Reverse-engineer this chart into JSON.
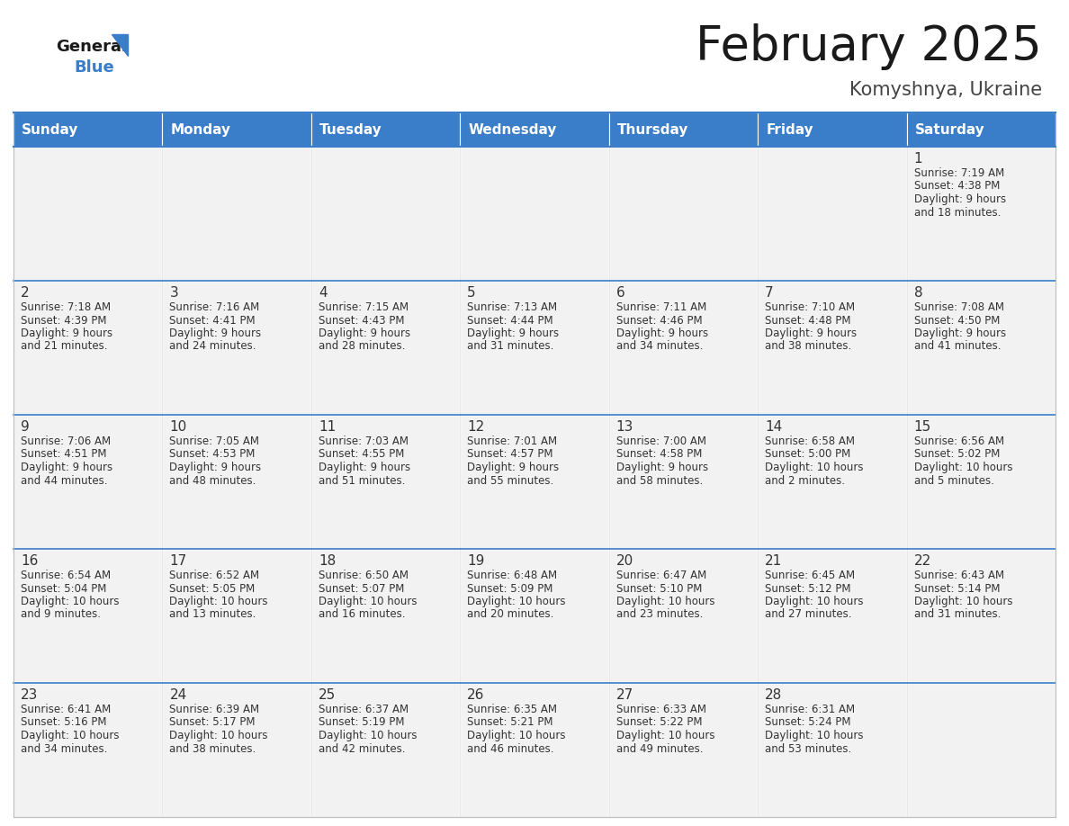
{
  "title": "February 2025",
  "subtitle": "Komyshnya, Ukraine",
  "header_color": "#3A7DC9",
  "header_text_color": "#FFFFFF",
  "cell_bg_color": "#F2F2F2",
  "day_number_color": "#333333",
  "info_text_color": "#333333",
  "line_color": "#3A7DC9",
  "days_of_week": [
    "Sunday",
    "Monday",
    "Tuesday",
    "Wednesday",
    "Thursday",
    "Friday",
    "Saturday"
  ],
  "calendar": [
    [
      null,
      null,
      null,
      null,
      null,
      null,
      {
        "day": "1",
        "sunrise": "7:19 AM",
        "sunset": "4:38 PM",
        "daylight_h": "9",
        "daylight_m": "18"
      }
    ],
    [
      {
        "day": "2",
        "sunrise": "7:18 AM",
        "sunset": "4:39 PM",
        "daylight_h": "9",
        "daylight_m": "21"
      },
      {
        "day": "3",
        "sunrise": "7:16 AM",
        "sunset": "4:41 PM",
        "daylight_h": "9",
        "daylight_m": "24"
      },
      {
        "day": "4",
        "sunrise": "7:15 AM",
        "sunset": "4:43 PM",
        "daylight_h": "9",
        "daylight_m": "28"
      },
      {
        "day": "5",
        "sunrise": "7:13 AM",
        "sunset": "4:44 PM",
        "daylight_h": "9",
        "daylight_m": "31"
      },
      {
        "day": "6",
        "sunrise": "7:11 AM",
        "sunset": "4:46 PM",
        "daylight_h": "9",
        "daylight_m": "34"
      },
      {
        "day": "7",
        "sunrise": "7:10 AM",
        "sunset": "4:48 PM",
        "daylight_h": "9",
        "daylight_m": "38"
      },
      {
        "day": "8",
        "sunrise": "7:08 AM",
        "sunset": "4:50 PM",
        "daylight_h": "9",
        "daylight_m": "41"
      }
    ],
    [
      {
        "day": "9",
        "sunrise": "7:06 AM",
        "sunset": "4:51 PM",
        "daylight_h": "9",
        "daylight_m": "44"
      },
      {
        "day": "10",
        "sunrise": "7:05 AM",
        "sunset": "4:53 PM",
        "daylight_h": "9",
        "daylight_m": "48"
      },
      {
        "day": "11",
        "sunrise": "7:03 AM",
        "sunset": "4:55 PM",
        "daylight_h": "9",
        "daylight_m": "51"
      },
      {
        "day": "12",
        "sunrise": "7:01 AM",
        "sunset": "4:57 PM",
        "daylight_h": "9",
        "daylight_m": "55"
      },
      {
        "day": "13",
        "sunrise": "7:00 AM",
        "sunset": "4:58 PM",
        "daylight_h": "9",
        "daylight_m": "58"
      },
      {
        "day": "14",
        "sunrise": "6:58 AM",
        "sunset": "5:00 PM",
        "daylight_h": "10",
        "daylight_m": "2"
      },
      {
        "day": "15",
        "sunrise": "6:56 AM",
        "sunset": "5:02 PM",
        "daylight_h": "10",
        "daylight_m": "5"
      }
    ],
    [
      {
        "day": "16",
        "sunrise": "6:54 AM",
        "sunset": "5:04 PM",
        "daylight_h": "10",
        "daylight_m": "9"
      },
      {
        "day": "17",
        "sunrise": "6:52 AM",
        "sunset": "5:05 PM",
        "daylight_h": "10",
        "daylight_m": "13"
      },
      {
        "day": "18",
        "sunrise": "6:50 AM",
        "sunset": "5:07 PM",
        "daylight_h": "10",
        "daylight_m": "16"
      },
      {
        "day": "19",
        "sunrise": "6:48 AM",
        "sunset": "5:09 PM",
        "daylight_h": "10",
        "daylight_m": "20"
      },
      {
        "day": "20",
        "sunrise": "6:47 AM",
        "sunset": "5:10 PM",
        "daylight_h": "10",
        "daylight_m": "23"
      },
      {
        "day": "21",
        "sunrise": "6:45 AM",
        "sunset": "5:12 PM",
        "daylight_h": "10",
        "daylight_m": "27"
      },
      {
        "day": "22",
        "sunrise": "6:43 AM",
        "sunset": "5:14 PM",
        "daylight_h": "10",
        "daylight_m": "31"
      }
    ],
    [
      {
        "day": "23",
        "sunrise": "6:41 AM",
        "sunset": "5:16 PM",
        "daylight_h": "10",
        "daylight_m": "34"
      },
      {
        "day": "24",
        "sunrise": "6:39 AM",
        "sunset": "5:17 PM",
        "daylight_h": "10",
        "daylight_m": "38"
      },
      {
        "day": "25",
        "sunrise": "6:37 AM",
        "sunset": "5:19 PM",
        "daylight_h": "10",
        "daylight_m": "42"
      },
      {
        "day": "26",
        "sunrise": "6:35 AM",
        "sunset": "5:21 PM",
        "daylight_h": "10",
        "daylight_m": "46"
      },
      {
        "day": "27",
        "sunrise": "6:33 AM",
        "sunset": "5:22 PM",
        "daylight_h": "10",
        "daylight_m": "49"
      },
      {
        "day": "28",
        "sunrise": "6:31 AM",
        "sunset": "5:24 PM",
        "daylight_h": "10",
        "daylight_m": "53"
      },
      null
    ]
  ]
}
